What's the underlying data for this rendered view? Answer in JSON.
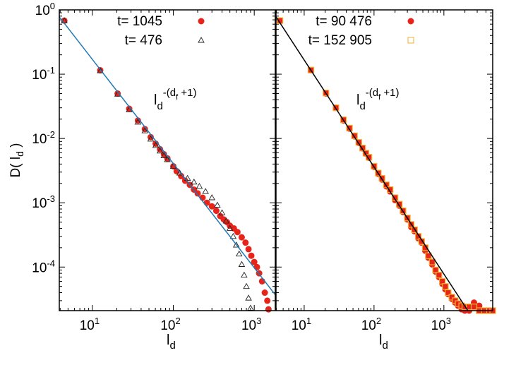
{
  "chart_data": [
    {
      "type": "scatter",
      "xlabel": "l_d",
      "ylabel": "D( l_d )",
      "x_scale": "log",
      "y_scale": "log",
      "xlim": [
        3.9,
        1820
      ],
      "ylim": [
        2.1e-05,
        1
      ],
      "x_ticks": [
        "10^1",
        "10^2",
        "10^3"
      ],
      "y_ticks": [
        "10^0",
        "10^-1",
        "10^-2",
        "10^-3",
        "10^-4"
      ],
      "grid": false,
      "legend_position": "top-right",
      "annotation": {
        "base": "l",
        "base_sub": "d",
        "exp": "-(d",
        "exp_sub": "f",
        "exp_tail": " +1)"
      },
      "fit_line": {
        "color": "#1f78b4",
        "x": [
          3.9,
          1820
        ],
        "y": [
          0.78,
          3.7e-05
        ]
      },
      "series": [
        {
          "name": "t= 1045",
          "marker": "circle",
          "color": "#e8241a",
          "x": [
            4.5,
            12.5,
            20.5,
            28.5,
            36.5,
            44.5,
            52.5,
            60.5,
            68.5,
            76.5,
            84.5,
            100,
            110,
            125,
            140,
            160,
            180,
            200,
            230,
            260,
            300,
            340,
            380,
            420,
            460,
            500,
            560,
            620,
            700,
            780,
            850,
            920,
            1000,
            1080,
            1150,
            1250,
            1350,
            1450,
            1500
          ],
          "y": [
            0.68,
            0.115,
            0.05,
            0.029,
            0.019,
            0.014,
            0.0105,
            0.0083,
            0.0068,
            0.0057,
            0.0049,
            0.0037,
            0.0031,
            0.0026,
            0.0022,
            0.0019,
            0.0016,
            0.0014,
            0.0012,
            0.001,
            0.00088,
            0.00075,
            0.00062,
            0.00055,
            0.0005,
            0.00044,
            0.0004,
            0.00035,
            0.00029,
            0.00024,
            0.00019,
            0.00015,
            0.00012,
            0.0001,
            8e-05,
            6e-05,
            4e-05,
            3e-05,
            2.2e-05
          ]
        },
        {
          "name": "t= 476",
          "marker": "triangle",
          "color": "#222222",
          "x": [
            4.5,
            12.5,
            20.5,
            28.5,
            36.5,
            44.5,
            52.5,
            60.5,
            68.5,
            76.5,
            84.5,
            100,
            120,
            150,
            180,
            210,
            250,
            300,
            350,
            400,
            450,
            500,
            550,
            600,
            650,
            700,
            750,
            800,
            850,
            900
          ],
          "y": [
            0.68,
            0.113,
            0.049,
            0.028,
            0.018,
            0.0132,
            0.0098,
            0.0078,
            0.0064,
            0.0054,
            0.0047,
            0.0037,
            0.0029,
            0.0024,
            0.0021,
            0.0018,
            0.0015,
            0.0012,
            0.00092,
            0.0007,
            0.00052,
            0.0004,
            0.0003,
            0.00022,
            0.00016,
            0.00011,
            7.5e-05,
            5e-05,
            3.3e-05,
            2.3e-05
          ]
        }
      ]
    },
    {
      "type": "scatter",
      "xlabel": "l_d",
      "x_scale": "log",
      "y_scale": "log",
      "xlim": [
        3.95,
        5000
      ],
      "ylim": [
        2.1e-05,
        1
      ],
      "x_ticks": [
        "10^1",
        "10^2",
        "10^3"
      ],
      "grid": false,
      "legend_position": "top-right",
      "annotation": {
        "base": "l",
        "base_sub": "d",
        "exp": "-(d",
        "exp_sub": "f",
        "exp_tail": " +1)"
      },
      "fit_line": {
        "color": "#000000",
        "x": [
          3.95,
          2200
        ],
        "y": [
          0.78,
          2.1e-05
        ]
      },
      "series": [
        {
          "name": "t= 90 476",
          "marker": "circle",
          "color": "#e8241a",
          "x": [
            4.5,
            12.5,
            20.5,
            28.5,
            36.5,
            44.5,
            52.5,
            60.5,
            68.5,
            76.5,
            84.5,
            100,
            115,
            130,
            150,
            170,
            200,
            230,
            260,
            300,
            340,
            380,
            430,
            480,
            540,
            600,
            680,
            760,
            850,
            950,
            1050,
            1150,
            1300,
            1450,
            1600,
            1800,
            2000,
            2300,
            2700,
            3200,
            3800,
            4500
          ],
          "y": [
            0.68,
            0.115,
            0.05,
            0.03,
            0.019,
            0.0142,
            0.0108,
            0.0085,
            0.007,
            0.0058,
            0.005,
            0.0036,
            0.0028,
            0.0023,
            0.0018,
            0.0015,
            0.0011,
            0.0009,
            0.00072,
            0.00055,
            0.00042,
            0.00036,
            0.00028,
            0.00024,
            0.00018,
            0.00014,
            0.00011,
            8.5e-05,
            7e-05,
            5.5e-05,
            4.5e-05,
            3.8e-05,
            3.2e-05,
            2.8e-05,
            2.5e-05,
            2.2e-05,
            2.1e-05,
            2.1e-05,
            2.8e-05,
            2.5e-05,
            2.1e-05,
            2.1e-05
          ]
        },
        {
          "name": "t= 152 905",
          "marker": "square",
          "color": "#f0b030",
          "x": [
            4.5,
            12.5,
            20.5,
            28.5,
            36.5,
            44.5,
            52.5,
            60.5,
            68.5,
            76.5,
            84.5,
            100,
            115,
            130,
            150,
            170,
            200,
            230,
            260,
            300,
            340,
            380,
            430,
            480,
            540,
            600,
            680,
            760,
            850,
            950,
            1050,
            1150,
            1300,
            1450,
            1600,
            1800,
            2000,
            2300,
            2700,
            3200,
            3800,
            4500,
            5000
          ],
          "y": [
            0.68,
            0.116,
            0.051,
            0.03,
            0.0195,
            0.0145,
            0.011,
            0.0087,
            0.0071,
            0.0059,
            0.0051,
            0.0037,
            0.0029,
            0.0024,
            0.0019,
            0.0016,
            0.0012,
            0.00095,
            0.00075,
            0.00058,
            0.00046,
            0.00038,
            0.0003,
            0.00025,
            0.0002,
            0.00015,
            0.00012,
            9e-05,
            7.5e-05,
            6e-05,
            5e-05,
            4e-05,
            3.4e-05,
            3e-05,
            2.7e-05,
            2.5e-05,
            2.4e-05,
            2.4e-05,
            2.4e-05,
            2.1e-05,
            2.1e-05,
            2.1e-05,
            2.1e-05
          ]
        }
      ]
    }
  ]
}
